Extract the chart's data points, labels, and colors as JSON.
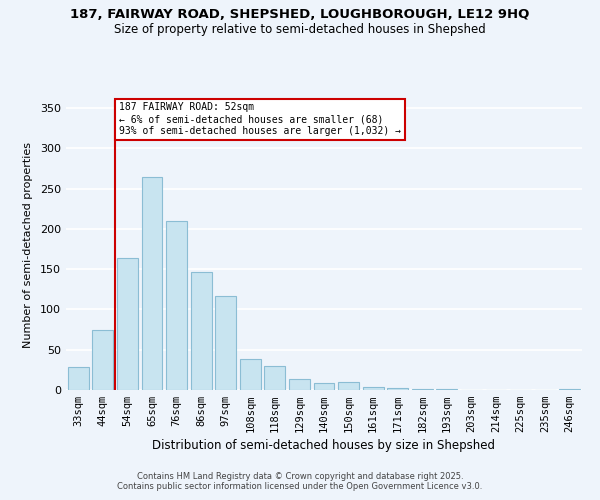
{
  "title_line1": "187, FAIRWAY ROAD, SHEPSHED, LOUGHBOROUGH, LE12 9HQ",
  "title_line2": "Size of property relative to semi-detached houses in Shepshed",
  "xlabel": "Distribution of semi-detached houses by size in Shepshed",
  "ylabel": "Number of semi-detached properties",
  "bar_labels": [
    "33sqm",
    "44sqm",
    "54sqm",
    "65sqm",
    "76sqm",
    "86sqm",
    "97sqm",
    "108sqm",
    "118sqm",
    "129sqm",
    "140sqm",
    "150sqm",
    "161sqm",
    "171sqm",
    "182sqm",
    "193sqm",
    "203sqm",
    "214sqm",
    "225sqm",
    "235sqm",
    "246sqm"
  ],
  "bar_values": [
    29,
    75,
    164,
    265,
    210,
    146,
    117,
    39,
    30,
    14,
    9,
    10,
    4,
    2,
    1,
    1,
    0,
    0,
    0,
    0,
    1
  ],
  "bar_color": "#c8e4f0",
  "bar_edge_color": "#8bbdd4",
  "annotation_title": "187 FAIRWAY ROAD: 52sqm",
  "annotation_line2": "← 6% of semi-detached houses are smaller (68)",
  "annotation_line3": "93% of semi-detached houses are larger (1,032) →",
  "annotation_box_color": "#ffffff",
  "annotation_box_edge_color": "#cc0000",
  "vline_color": "#cc0000",
  "vline_x": 1.5,
  "ylim": [
    0,
    360
  ],
  "yticks": [
    0,
    50,
    100,
    150,
    200,
    250,
    300,
    350
  ],
  "footer_line1": "Contains HM Land Registry data © Crown copyright and database right 2025.",
  "footer_line2": "Contains public sector information licensed under the Open Government Licence v3.0.",
  "bg_color": "#eef4fb",
  "grid_color": "#ffffff"
}
